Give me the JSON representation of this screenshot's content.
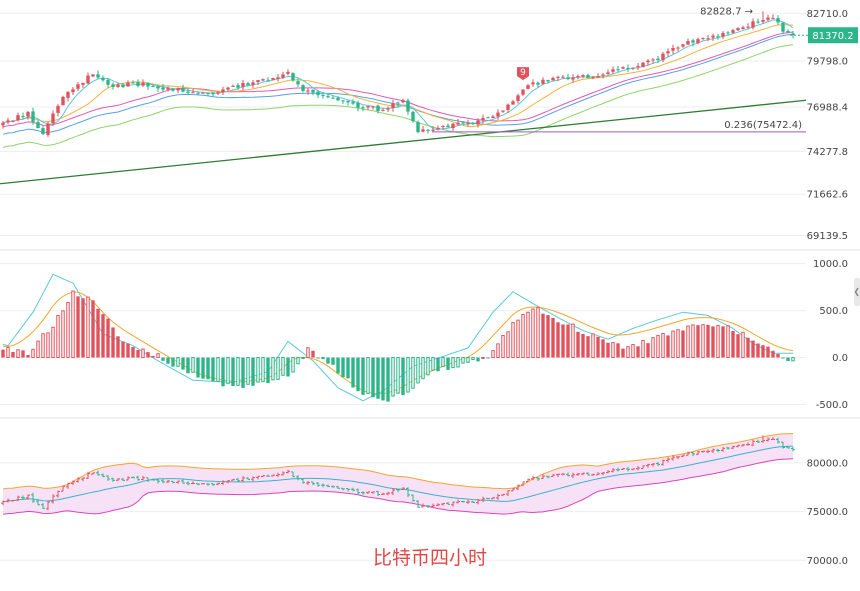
{
  "caption": "比特币四小时",
  "colors": {
    "up": "#e2525c",
    "down": "#2db58a",
    "ma5": "#5bc8d8",
    "ma10": "#f2b33d",
    "ma20": "#e05ab6",
    "ma30": "#5aa0e0",
    "ma60": "#8fd46a",
    "trend": "#2e7d32",
    "fib": "#9b59d0",
    "dif": "#5bc8d8",
    "dea": "#f2a62d",
    "boll_upper": "#f2a62d",
    "boll_lower": "#d946b8",
    "boll_mid": "#3ab3c9",
    "boll_fill": "#f3d4f3",
    "price_tag": "#2db58a",
    "caption": "#e04848",
    "grid": "#eeeeee"
  },
  "chart_data": [
    {
      "type": "candlestick",
      "panel": "price",
      "y_ticks": [
        "82710.0",
        "79798.0",
        "76988.4",
        "74277.8",
        "71662.6",
        "69139.5"
      ],
      "ylim": [
        68500,
        83400
      ],
      "last_price": "81370.2",
      "last_price_value": 81370.2,
      "high_label": "82828.7",
      "high_value": 82828.7,
      "signal_label": "9",
      "fib_label": "0.236(75472.4)",
      "fib_value": 75472.4,
      "anchors": [
        [
          0,
          76000
        ],
        [
          5,
          76600
        ],
        [
          8,
          75400
        ],
        [
          12,
          77700
        ],
        [
          18,
          79000
        ],
        [
          22,
          78300
        ],
        [
          28,
          78400
        ],
        [
          35,
          78000
        ],
        [
          42,
          77900
        ],
        [
          50,
          78500
        ],
        [
          57,
          79100
        ],
        [
          60,
          78000
        ],
        [
          65,
          77700
        ],
        [
          70,
          77100
        ],
        [
          76,
          76800
        ],
        [
          80,
          77500
        ],
        [
          83,
          75500
        ],
        [
          88,
          75800
        ],
        [
          95,
          76100
        ],
        [
          100,
          76700
        ],
        [
          105,
          78300
        ],
        [
          110,
          78700
        ],
        [
          118,
          78900
        ],
        [
          125,
          79400
        ],
        [
          130,
          79800
        ],
        [
          135,
          80700
        ],
        [
          140,
          81200
        ],
        [
          145,
          81500
        ],
        [
          150,
          82100
        ],
        [
          154,
          82500
        ],
        [
          156,
          81700
        ],
        [
          158,
          81370
        ]
      ]
    },
    {
      "type": "bar",
      "panel": "macd",
      "y_ticks": [
        "1000.0",
        "500.0",
        "0.0",
        "-500.0"
      ],
      "ylim": [
        -580,
        1060
      ],
      "anchors": [
        [
          0,
          100
        ],
        [
          5,
          40
        ],
        [
          10,
          350
        ],
        [
          14,
          700
        ],
        [
          18,
          620
        ],
        [
          24,
          150
        ],
        [
          30,
          40
        ],
        [
          35,
          -100
        ],
        [
          42,
          -280
        ],
        [
          50,
          -300
        ],
        [
          57,
          -200
        ],
        [
          61,
          80
        ],
        [
          66,
          -100
        ],
        [
          71,
          -350
        ],
        [
          76,
          -470
        ],
        [
          80,
          -380
        ],
        [
          86,
          -150
        ],
        [
          92,
          -60
        ],
        [
          97,
          20
        ],
        [
          102,
          350
        ],
        [
          106,
          540
        ],
        [
          110,
          430
        ],
        [
          115,
          300
        ],
        [
          120,
          180
        ],
        [
          125,
          100
        ],
        [
          130,
          200
        ],
        [
          135,
          280
        ],
        [
          140,
          350
        ],
        [
          145,
          320
        ],
        [
          150,
          200
        ],
        [
          154,
          60
        ],
        [
          158,
          -30
        ]
      ]
    },
    {
      "type": "candlestick",
      "panel": "bollinger",
      "y_ticks": [
        "80000.0",
        "75000.0",
        "70000.0"
      ],
      "ylim": [
        69000,
        84000
      ]
    }
  ]
}
